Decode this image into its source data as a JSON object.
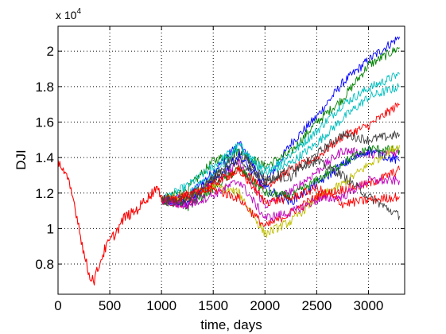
{
  "chart_data": {
    "type": "line",
    "title": "",
    "xlabel": "time, days",
    "ylabel": "DJI",
    "y_exponent_label": "x 10",
    "y_exponent_power": "4",
    "xlim": [
      0,
      3350
    ],
    "ylim": [
      6300,
      21400
    ],
    "x_ticks": [
      0,
      500,
      1000,
      1500,
      2000,
      2500,
      3000
    ],
    "x_tick_labels": [
      "0",
      "500",
      "1000",
      "1500",
      "2000",
      "2500",
      "3000"
    ],
    "y_ticks": [
      8000,
      10000,
      12000,
      14000,
      16000,
      18000,
      20000
    ],
    "y_tick_labels": [
      "0.8",
      "1",
      "1.2",
      "1.4",
      "1.6",
      "1.8",
      "2"
    ],
    "grid": true,
    "grid_style": "dotted",
    "legend": "none",
    "historical": {
      "color": "#ff0000",
      "x": [
        0,
        50,
        100,
        150,
        200,
        250,
        300,
        350,
        400,
        450,
        500,
        550,
        600,
        650,
        700,
        750,
        800,
        850,
        900,
        950,
        1000
      ],
      "values": [
        13900,
        13300,
        12600,
        11600,
        10200,
        8600,
        7400,
        7100,
        8000,
        8800,
        9300,
        9700,
        10200,
        10700,
        10800,
        11000,
        11300,
        11700,
        11900,
        12400,
        11600
      ]
    },
    "simulations": {
      "x": [
        1000,
        1250,
        1500,
        1750,
        2000,
        2250,
        2500,
        2750,
        3000,
        3300
      ],
      "series": [
        {
          "color": "#0000ff",
          "values": [
            11600,
            11800,
            13200,
            14800,
            12500,
            14800,
            16300,
            18200,
            19500,
            20800
          ]
        },
        {
          "color": "#008000",
          "values": [
            11600,
            12200,
            13800,
            14400,
            13500,
            14300,
            16000,
            17300,
            19200,
            20200
          ]
        },
        {
          "color": "#00bfbf",
          "values": [
            11600,
            12400,
            13500,
            14700,
            13200,
            14200,
            15500,
            17000,
            17900,
            18700
          ]
        },
        {
          "color": "#00bfbf",
          "values": [
            11600,
            11900,
            13000,
            14500,
            13100,
            13700,
            14800,
            16200,
            17400,
            18000
          ]
        },
        {
          "color": "#ff0000",
          "values": [
            11600,
            11400,
            12700,
            13300,
            12400,
            13300,
            14000,
            15200,
            15800,
            17000
          ]
        },
        {
          "color": "#404040",
          "values": [
            11600,
            11700,
            12900,
            14300,
            12800,
            12900,
            14200,
            15300,
            15000,
            15300
          ]
        },
        {
          "color": "#bf00bf",
          "values": [
            11600,
            11300,
            12500,
            13700,
            11300,
            12100,
            13200,
            14400,
            14200,
            14300
          ]
        },
        {
          "color": "#0000ff",
          "values": [
            11600,
            11500,
            12600,
            14100,
            12300,
            11500,
            12500,
            13600,
            14400,
            13800
          ]
        },
        {
          "color": "#008000",
          "values": [
            11600,
            11200,
            12300,
            13400,
            12000,
            11800,
            12700,
            13700,
            14500,
            14400
          ]
        },
        {
          "color": "#bfbf00",
          "values": [
            11600,
            11800,
            12400,
            12000,
            9700,
            10400,
            11700,
            12500,
            13600,
            14700
          ]
        },
        {
          "color": "#ff0000",
          "values": [
            11600,
            11900,
            12200,
            11700,
            10100,
            10900,
            11800,
            12200,
            12500,
            13300
          ]
        },
        {
          "color": "#bf00bf",
          "values": [
            11600,
            11300,
            11900,
            12700,
            10600,
            10900,
            11600,
            11800,
            12700,
            12700
          ]
        },
        {
          "color": "#ff0000",
          "values": [
            11600,
            11800,
            12500,
            13300,
            11500,
            11700,
            12300,
            11400,
            11600,
            11800
          ]
        },
        {
          "color": "#404040",
          "values": [
            11600,
            11600,
            12800,
            13900,
            12600,
            13400,
            13800,
            13000,
            11800,
            10700
          ]
        }
      ]
    }
  }
}
